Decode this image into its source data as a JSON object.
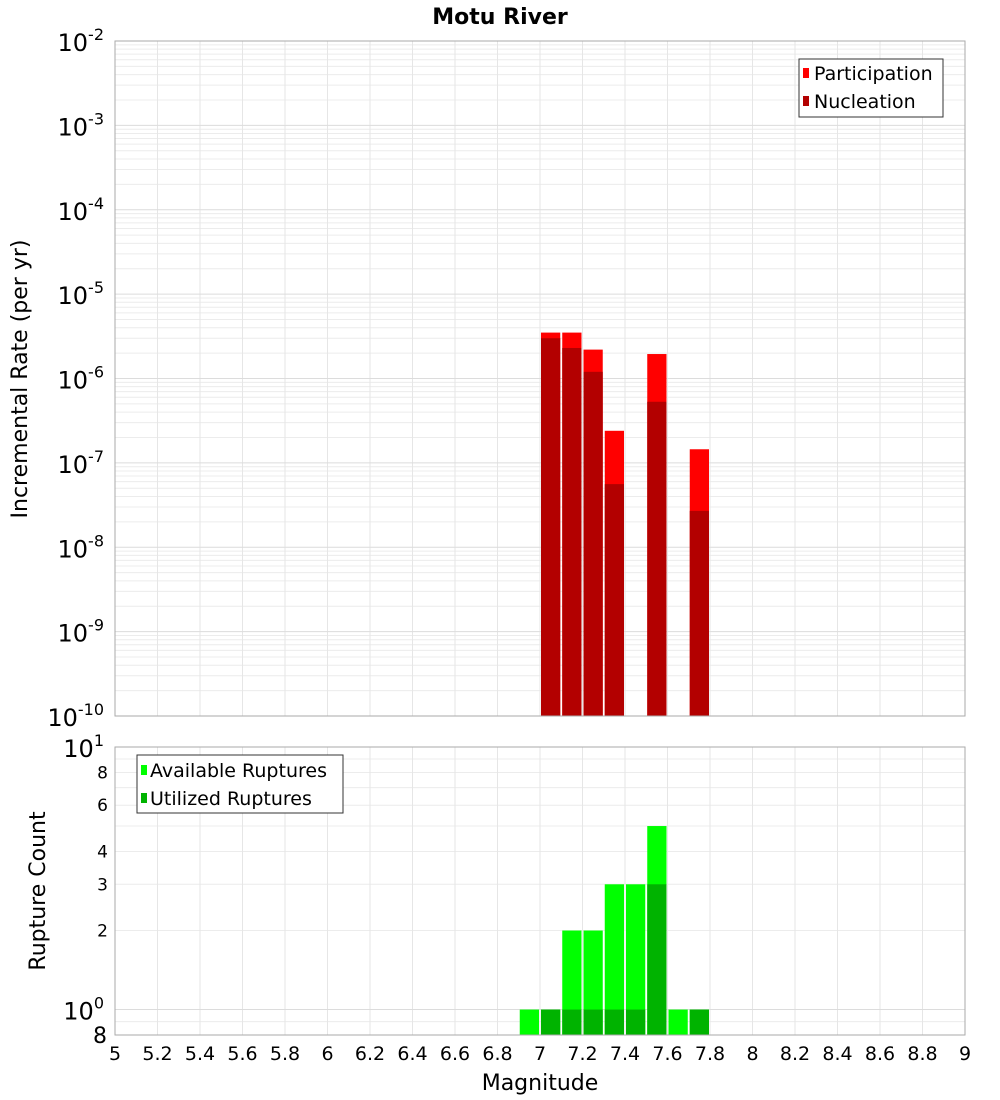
{
  "chart_data": [
    {
      "type": "bar",
      "title": "Motu River",
      "xlabel": "",
      "ylabel": "Incremental Rate (per yr)",
      "yscale": "log",
      "ylim": [
        1e-10,
        0.01
      ],
      "xlim": [
        5,
        9
      ],
      "y_tick_exponents": [
        "-10",
        "-9",
        "-8",
        "-7",
        "-6",
        "-5",
        "-4",
        "-3",
        "-2"
      ],
      "grid": true,
      "legend_position": "top-right",
      "series": [
        {
          "name": "Participation",
          "color": "#ff0000",
          "x": [
            7.05,
            7.15,
            7.25,
            7.35,
            7.55,
            7.75
          ],
          "values": [
            3.5e-06,
            3.5e-06,
            2.2e-06,
            2.4e-07,
            1.95e-06,
            1.45e-07
          ]
        },
        {
          "name": "Nucleation",
          "color": "#b30000",
          "x": [
            7.05,
            7.15,
            7.25,
            7.35,
            7.55,
            7.75
          ],
          "values": [
            3e-06,
            2.3e-06,
            1.2e-06,
            5.6e-08,
            5.3e-07,
            2.7e-08
          ]
        }
      ]
    },
    {
      "type": "bar",
      "title": "",
      "xlabel": "Magnitude",
      "ylabel": "Rupture Count",
      "yscale": "log",
      "ylim": [
        0.8,
        10
      ],
      "xlim": [
        5,
        9
      ],
      "x_ticks": [
        "5",
        "5.2",
        "5.4",
        "5.6",
        "5.8",
        "6",
        "6.2",
        "6.4",
        "6.6",
        "6.8",
        "7",
        "7.2",
        "7.4",
        "7.6",
        "7.8",
        "8",
        "8.2",
        "8.4",
        "8.6",
        "8.8",
        "9"
      ],
      "y_minor_ticks": [
        {
          "v": 2,
          "label": "2"
        },
        {
          "v": 3,
          "label": "3"
        },
        {
          "v": 4,
          "label": "4"
        },
        {
          "v": 6,
          "label": "6"
        },
        {
          "v": 8,
          "label": "8"
        }
      ],
      "y_major_ticks": [
        {
          "v": 1,
          "label": "10",
          "exp": "0"
        },
        {
          "v": 10,
          "label": "10",
          "exp": "1"
        }
      ],
      "y_bottom_label": "8",
      "grid": true,
      "legend_position": "top-left",
      "series": [
        {
          "name": "Available Ruptures",
          "color": "#00ff00",
          "x": [
            6.95,
            7.05,
            7.15,
            7.25,
            7.35,
            7.45,
            7.55,
            7.65,
            7.75
          ],
          "values": [
            1,
            1,
            2,
            2,
            3,
            3,
            5,
            1,
            1
          ]
        },
        {
          "name": "Utilized Ruptures",
          "color": "#00b300",
          "x": [
            7.05,
            7.15,
            7.25,
            7.35,
            7.45,
            7.55,
            7.75
          ],
          "values": [
            1,
            1,
            1,
            1,
            1,
            3,
            1
          ]
        }
      ]
    }
  ]
}
